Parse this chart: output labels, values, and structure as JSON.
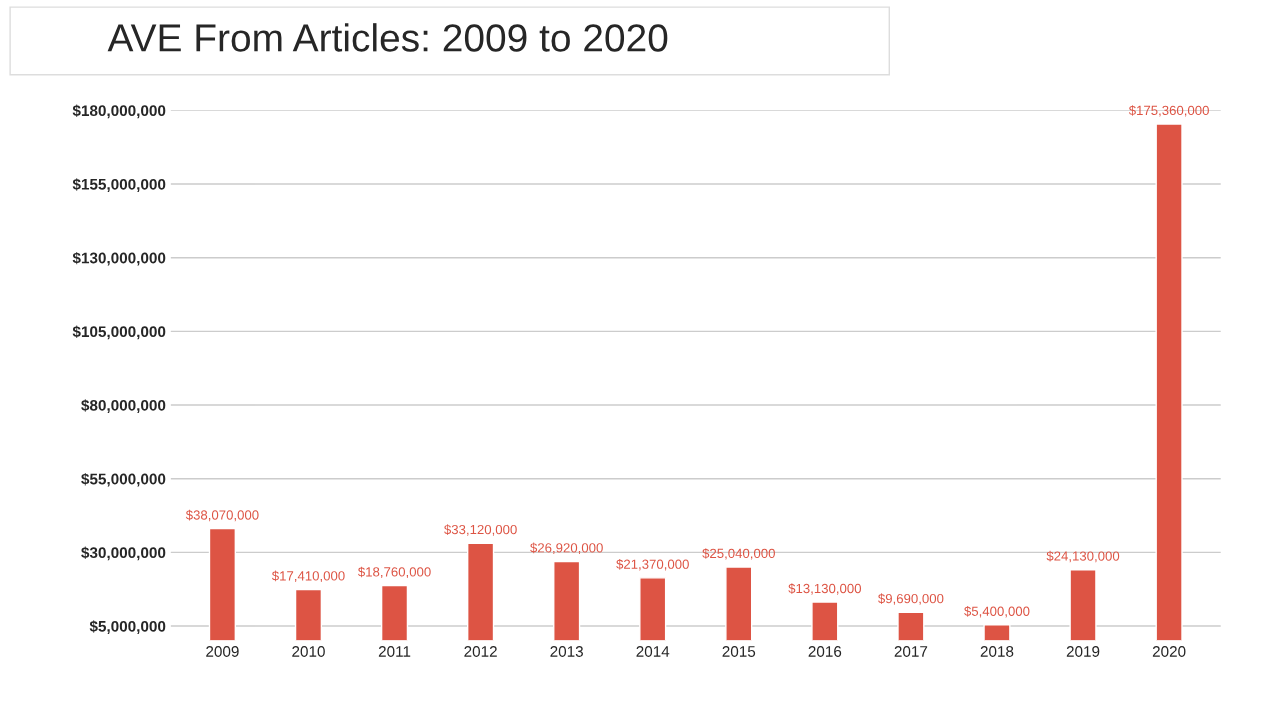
{
  "chart_data": {
    "type": "bar",
    "title": "AVE From Articles: 2009 to 2020",
    "categories": [
      "2009",
      "2010",
      "2011",
      "2012",
      "2013",
      "2014",
      "2015",
      "2016",
      "2017",
      "2018",
      "2019",
      "2020"
    ],
    "values": [
      38070000,
      17410000,
      18760000,
      33120000,
      26920000,
      21370000,
      25040000,
      13130000,
      9690000,
      5400000,
      24130000,
      175360000
    ],
    "value_labels": [
      "$38,070,000",
      "$17,410,000",
      "$18,760,000",
      "$33,120,000",
      "$26,920,000",
      "$21,370,000",
      "$25,040,000",
      "$13,130,000",
      "$9,690,000",
      "$5,400,000",
      "$24,130,000",
      "$175,360,000"
    ],
    "color": "#dd5444",
    "ylim": [
      0,
      180000000
    ],
    "yticks": [
      {
        "value": 5000000,
        "label": "$5,000,000"
      },
      {
        "value": 30000000,
        "label": "$30,000,000"
      },
      {
        "value": 55000000,
        "label": "$55,000,000"
      },
      {
        "value": 80000000,
        "label": "$80,000,000"
      },
      {
        "value": 105000000,
        "label": "$105,000,000"
      },
      {
        "value": 130000000,
        "label": "$130,000,000"
      },
      {
        "value": 155000000,
        "label": "$155,000,000"
      },
      {
        "value": 180000000,
        "label": "$180,000,000"
      }
    ],
    "grid": "y",
    "legend": false
  }
}
